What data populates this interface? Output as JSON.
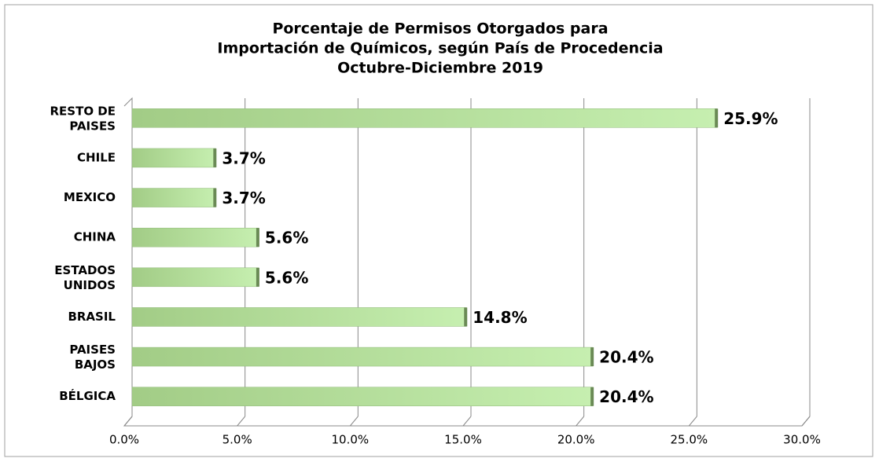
{
  "chart_data": {
    "type": "bar",
    "orientation": "horizontal",
    "title": [
      "Porcentaje de Permisos Otorgados para",
      "Importación de Químicos, según País de Procedencia",
      "Octubre-Diciembre 2019"
    ],
    "categories": [
      "RESTO DE PAISES",
      "CHILE",
      "MEXICO",
      "CHINA",
      "ESTADOS UNIDOS",
      "BRASIL",
      "PAISES BAJOS",
      "BÉLGICA"
    ],
    "values": [
      25.9,
      3.7,
      3.7,
      5.6,
      5.6,
      14.8,
      20.4,
      20.4
    ],
    "value_labels": [
      "25.9%",
      "3.7%",
      "3.7%",
      "5.6%",
      "5.6%",
      "14.8%",
      "20.4%",
      "20.4%"
    ],
    "color": "#a9d08e",
    "xlim": [
      0,
      30
    ],
    "xticks": [
      {
        "value": 0,
        "label": "0.0%"
      },
      {
        "value": 5,
        "label": "5.0%"
      },
      {
        "value": 10,
        "label": "10.0%"
      },
      {
        "value": 15,
        "label": "15.0%"
      },
      {
        "value": 20,
        "label": "20.0%"
      },
      {
        "value": 25,
        "label": "25.0%"
      },
      {
        "value": 30,
        "label": "30.0%"
      }
    ],
    "grid": true
  }
}
